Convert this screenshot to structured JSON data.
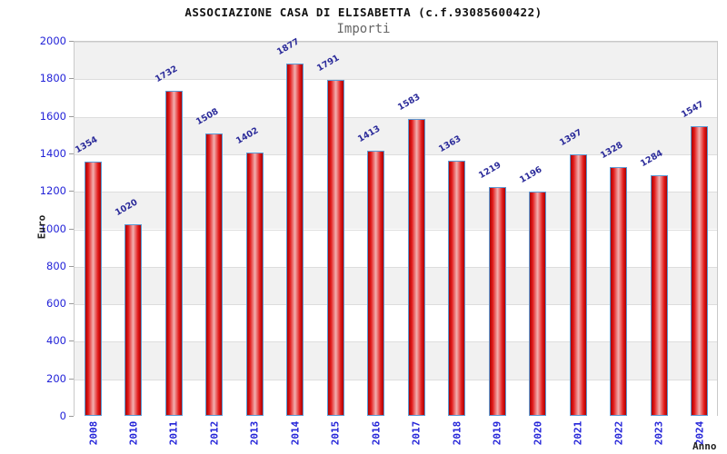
{
  "chart_data": {
    "type": "bar",
    "title": "ASSOCIAZIONE CASA DI ELISABETTA (c.f.93085600422)",
    "subtitle": "Importi",
    "xlabel": "Anno",
    "ylabel": "Euro",
    "categories": [
      "2008",
      "2010",
      "2011",
      "2012",
      "2013",
      "2014",
      "2015",
      "2016",
      "2017",
      "2018",
      "2019",
      "2020",
      "2021",
      "2022",
      "2023",
      "2024"
    ],
    "values": [
      1354,
      1020,
      1732,
      1508,
      1402,
      1877,
      1791,
      1413,
      1583,
      1363,
      1219,
      1196,
      1397,
      1328,
      1284,
      1547
    ],
    "ylim": [
      0,
      2000
    ],
    "ytick_step": 200,
    "grid": "horizontal-bands",
    "legend": "none",
    "colors": {
      "title": "#111111",
      "subtitle": "#666666",
      "tick_label_blue": "#2323d8",
      "value_label": "#2b2b9a",
      "axis_title": "#222222",
      "band_gray": "#f1f1f1",
      "band_white": "#ffffff",
      "plot_border": "#c9c9c9",
      "gridline": "#dddddd",
      "tick_mark": "#999999",
      "bar_border": "#5b9bd5",
      "bar_edge": "#a80505",
      "bar_red": "#e21717",
      "bar_mid": "#f2b0b0"
    }
  }
}
